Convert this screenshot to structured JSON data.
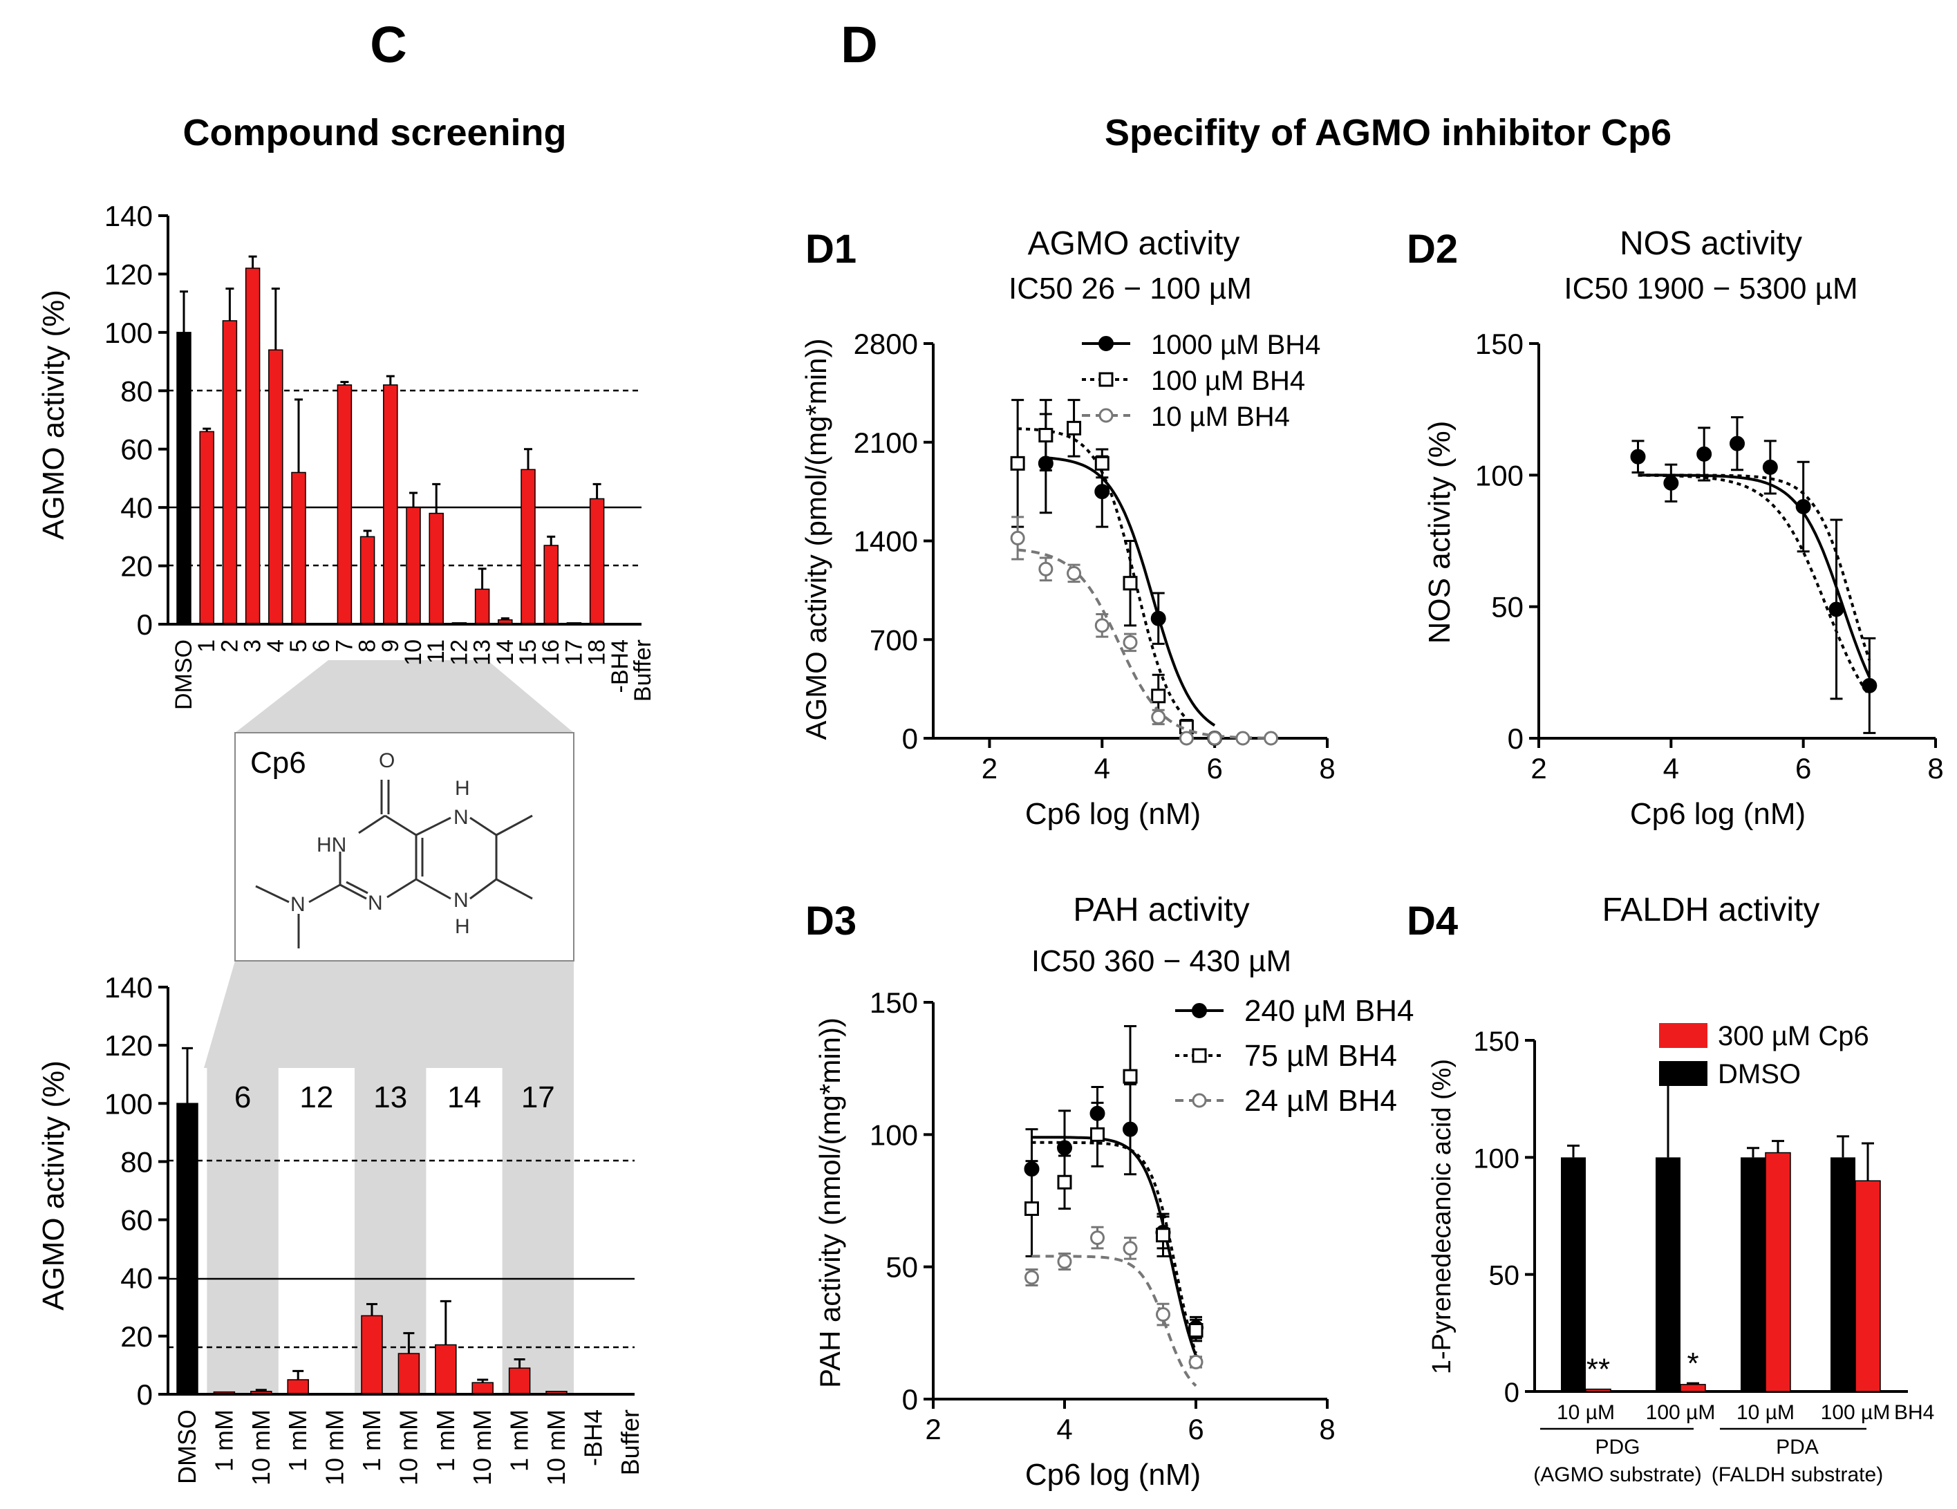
{
  "colors": {
    "red": "#ee1c1c",
    "black": "#000000",
    "gray": "#777777",
    "shade": "#d8d8d8"
  },
  "chart_data": {
    "panel_C": {
      "letter": "C",
      "title": "Compound screening",
      "top": {
        "type": "bar",
        "ylabel": "AGMO activity (%)",
        "ylim": [
          0,
          140
        ],
        "yticks": [
          "0",
          "20",
          "40",
          "60",
          "80",
          "100",
          "120",
          "140"
        ],
        "ref_lines": {
          "dashed": [
            80,
            20
          ],
          "solid": [
            40
          ]
        },
        "categories": [
          "DMSO",
          "1",
          "2",
          "3",
          "4",
          "5",
          "6",
          "7",
          "8",
          "9",
          "10",
          "11",
          "12",
          "13",
          "14",
          "15",
          "16",
          "17",
          "18",
          "-BH4",
          "Buffer"
        ],
        "values": [
          100,
          66,
          104,
          122,
          94,
          52,
          0,
          82,
          30,
          82,
          40,
          38,
          0.5,
          12,
          1.5,
          53,
          27,
          0.5,
          43,
          0,
          0
        ],
        "errors": [
          14,
          1,
          11,
          4,
          21,
          25,
          0,
          1,
          2,
          3,
          5,
          10,
          0,
          7,
          0.5,
          7,
          3,
          0,
          5,
          0,
          0
        ],
        "bar_colors": [
          "black",
          "red",
          "red",
          "red",
          "red",
          "red",
          "red",
          "red",
          "red",
          "red",
          "red",
          "red",
          "red",
          "red",
          "red",
          "red",
          "red",
          "red",
          "red",
          "red",
          "red"
        ]
      },
      "compound": {
        "name": "Cp6",
        "atoms": [
          "O",
          "HN",
          "N",
          "H",
          "N",
          "N",
          "H",
          "N"
        ]
      },
      "bottom": {
        "type": "bar",
        "ylabel": "AGMO activity (%)",
        "ylim": [
          0,
          140
        ],
        "yticks": [
          "0",
          "20",
          "40",
          "60",
          "80",
          "100",
          "120",
          "140"
        ],
        "ref_lines": {
          "dashed": [
            80,
            16
          ],
          "solid": [
            40
          ]
        },
        "group_labels": [
          "6",
          "12",
          "13",
          "14",
          "17"
        ],
        "shaded_groups": [
          "6",
          "13",
          "17"
        ],
        "categories": [
          "DMSO",
          "1 mM",
          "10 mM",
          "1 mM",
          "10 mM",
          "1 mM",
          "10 mM",
          "1 mM",
          "10 mM",
          "1 mM",
          "10 mM",
          "-BH4",
          "Buffer"
        ],
        "values": [
          100,
          0.8,
          1,
          5,
          0.3,
          27,
          14,
          17,
          4,
          9,
          1,
          0.3,
          0
        ],
        "errors": [
          19,
          0,
          0.5,
          3,
          0,
          4,
          7,
          15,
          1,
          3,
          0,
          0,
          0
        ],
        "bar_colors": [
          "black",
          "red",
          "red",
          "red",
          "red",
          "red",
          "red",
          "red",
          "red",
          "red",
          "red",
          "red",
          "red"
        ]
      }
    },
    "panel_D": {
      "letter": "D",
      "title": "Specifity of AGMO inhibitor Cp6",
      "D1": {
        "type": "scatter",
        "label": "D1",
        "title": "AGMO activity",
        "subtitle": "IC50 26 − 100 µM",
        "xlabel": "Cp6 log (nM)",
        "ylabel": "AGMO activity (pmol/(mg*min))",
        "xlim": [
          1,
          8
        ],
        "ylim": [
          0,
          2800
        ],
        "xticks": [
          "2",
          "4",
          "6",
          "8"
        ],
        "yticks": [
          "0",
          "700",
          "1400",
          "2100",
          "2800"
        ],
        "series": [
          {
            "name": "1000 µM BH4",
            "marker": "filled-circle",
            "line": "solid",
            "color": "black",
            "x": [
              3,
              4,
              5,
              6
            ],
            "y": [
              1950,
              1750,
              850,
              0
            ],
            "err": [
              350,
              250,
              180,
              0
            ],
            "fit": {
              "top": 2000,
              "bottom": 0,
              "logic50": 4.9,
              "hill": 1.2
            }
          },
          {
            "name": "100 µM BH4",
            "marker": "open-square",
            "line": "dotted",
            "color": "black",
            "x": [
              2.5,
              3,
              3.5,
              4,
              4.5,
              5,
              5.5
            ],
            "y": [
              1950,
              2150,
              2200,
              1950,
              1100,
              300,
              80
            ],
            "err": [
              450,
              250,
              200,
              100,
              300,
              150,
              50
            ],
            "fit": {
              "top": 2200,
              "bottom": 0,
              "logic50": 4.6,
              "hill": 1.3
            }
          },
          {
            "name": "10 µM BH4",
            "marker": "open-circle",
            "line": "dashed",
            "color": "gray",
            "x": [
              2.5,
              3,
              3.5,
              4,
              4.5,
              5,
              5.5,
              6,
              6.5,
              7
            ],
            "y": [
              1420,
              1200,
              1170,
              800,
              680,
              150,
              0,
              0,
              0,
              0
            ],
            "err": [
              150,
              80,
              60,
              80,
              60,
              50,
              0,
              0,
              0,
              0
            ],
            "fit": {
              "top": 1350,
              "bottom": 0,
              "logic50": 4.3,
              "hill": 1.1
            }
          }
        ]
      },
      "D2": {
        "type": "scatter",
        "label": "D2",
        "title": "NOS activity",
        "subtitle": "IC50 1900 − 5300 µM",
        "xlabel": "Cp6 log (nM)",
        "ylabel": "NOS activity (%)",
        "xlim": [
          2,
          8
        ],
        "ylim": [
          0,
          150
        ],
        "xticks": [
          "2",
          "4",
          "6",
          "8"
        ],
        "yticks": [
          "0",
          "50",
          "100",
          "150"
        ],
        "series": [
          {
            "name": "Cp6",
            "marker": "filled-circle",
            "line": "solid",
            "color": "black",
            "x": [
              3.5,
              4,
              4.5,
              5,
              5.5,
              6,
              6.5,
              7
            ],
            "y": [
              107,
              97,
              108,
              112,
              103,
              88,
              49,
              20
            ],
            "err": [
              6,
              7,
              10,
              10,
              10,
              17,
              34,
              18
            ],
            "fit": {
              "top": 100,
              "bottom": 0,
              "logic50": 6.6,
              "hill": 1.3
            },
            "fit_bounds": [
              {
                "top": 100,
                "bottom": 0,
                "logic50": 6.75,
                "hill": 1.5
              },
              {
                "top": 100,
                "bottom": 0,
                "logic50": 6.35,
                "hill": 1.1
              }
            ]
          }
        ]
      },
      "D3": {
        "type": "scatter",
        "label": "D3",
        "title": "PAH activity",
        "subtitle": "IC50 360 − 430 µM",
        "xlabel": "Cp6 log (nM)",
        "ylabel": "PAH activity (nmol/(mg*min))",
        "xlim": [
          2,
          8
        ],
        "ylim": [
          0,
          150
        ],
        "xticks": [
          "2",
          "4",
          "6",
          "8"
        ],
        "yticks": [
          "0",
          "50",
          "100",
          "150"
        ],
        "series": [
          {
            "name": "240 µM BH4",
            "marker": "filled-circle",
            "line": "solid",
            "color": "black",
            "x": [
              3.5,
              4,
              4.5,
              5,
              5.5,
              6
            ],
            "y": [
              87,
              95,
              108,
              102,
              63,
              27
            ],
            "err": [
              15,
              14,
              10,
              17,
              6,
              4
            ],
            "fit": {
              "top": 99,
              "bottom": 0,
              "logic50": 5.65,
              "hill": 2.0
            }
          },
          {
            "name": "75 µM BH4",
            "marker": "open-square",
            "line": "dotted",
            "color": "black",
            "x": [
              3.5,
              4,
              4.5,
              5,
              5.5,
              6
            ],
            "y": [
              72,
              82,
              100,
              122,
              62,
              26
            ],
            "err": [
              18,
              10,
              12,
              19,
              8,
              4
            ],
            "fit": {
              "top": 97,
              "bottom": 0,
              "logic50": 5.7,
              "hill": 2.2
            }
          },
          {
            "name": "24 µM BH4",
            "marker": "open-circle",
            "line": "dashed",
            "color": "gray",
            "x": [
              3.5,
              4,
              4.5,
              5,
              5.5,
              6
            ],
            "y": [
              46,
              52,
              61,
              57,
              32,
              14
            ],
            "err": [
              3,
              3,
              4,
              4,
              4,
              2
            ],
            "fit": {
              "top": 54,
              "bottom": 0,
              "logic50": 5.55,
              "hill": 2.2
            }
          }
        ]
      },
      "D4": {
        "type": "bar",
        "label": "D4",
        "title": "FALDH activity",
        "ylabel": "1-Pyrenedecanoic acid (%)",
        "ylim": [
          0,
          150
        ],
        "yticks": [
          "0",
          "50",
          "100",
          "150"
        ],
        "legend": [
          {
            "name": "300 µM Cp6",
            "color": "red"
          },
          {
            "name": "DMSO",
            "color": "black"
          }
        ],
        "groups": [
          {
            "label": "10 µM",
            "dmso": 100,
            "dmso_err": 5,
            "cp6": 1,
            "cp6_err": 0,
            "sig": "**"
          },
          {
            "label": "100 µM",
            "dmso": 100,
            "dmso_err": 37,
            "cp6": 3,
            "cp6_err": 0.5,
            "sig": "*"
          },
          {
            "label": "10 µM",
            "dmso": 100,
            "dmso_err": 4,
            "cp6": 102,
            "cp6_err": 5,
            "sig": ""
          },
          {
            "label": "100 µM",
            "dmso": 100,
            "dmso_err": 9,
            "cp6": 90,
            "cp6_err": 16,
            "sig": ""
          }
        ],
        "extra_label": "BH4",
        "substrates": [
          {
            "name": "PDG",
            "desc": "(AGMO substrate)"
          },
          {
            "name": "PDA",
            "desc": "(FALDH substrate)"
          }
        ]
      }
    }
  }
}
